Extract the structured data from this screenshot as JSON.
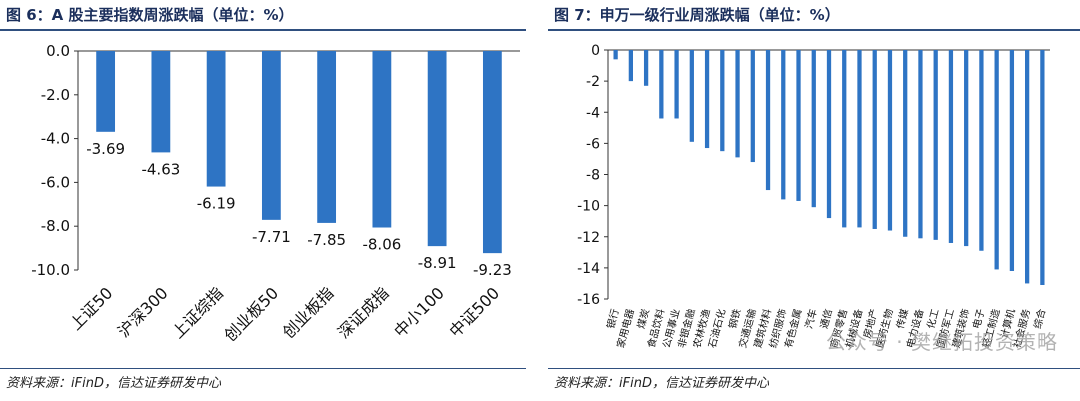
{
  "left": {
    "title": "图 6：A 股主要指数周涨跌幅（单位：%）",
    "source": "资料来源：iFinD，信达证券研发中心",
    "chart_data": {
      "type": "bar",
      "title": "图 6：A 股主要指数周涨跌幅（单位：%）",
      "categories": [
        "上证50",
        "沪深300",
        "上证综指",
        "创业板50",
        "创业板指",
        "深证成指",
        "中小100",
        "中证500"
      ],
      "values": [
        -3.69,
        -4.63,
        -6.19,
        -7.71,
        -7.85,
        -8.06,
        -8.91,
        -9.23
      ],
      "value_labels": [
        "-3.69",
        "-4.63",
        "-6.19",
        "-7.71",
        "-7.85",
        "-8.06",
        "-8.91",
        "-9.23"
      ],
      "yticks": [
        "0.0",
        "-2.0",
        "-4.0",
        "-6.0",
        "-8.0",
        "-10.0"
      ],
      "ylim": [
        -10,
        0
      ],
      "xlabel": "",
      "ylabel": "",
      "grid": false,
      "bar_color": "#2e74c4"
    }
  },
  "right": {
    "title": "图 7：申万一级行业周涨跌幅（单位：%）",
    "source": "资料来源：iFinD，信达证券研发中心",
    "watermark": "公众号 · 樊继拓投资策略",
    "chart_data": {
      "type": "bar",
      "title": "图 7：申万一级行业周涨跌幅（单位：%）",
      "categories": [
        "银行",
        "家用电器",
        "煤炭",
        "食品饮料",
        "公用事业",
        "非银金融",
        "农林牧渔",
        "石油石化",
        "钢铁",
        "交通运输",
        "建筑材料",
        "纺织服饰",
        "有色金属",
        "汽车",
        "通信",
        "商贸零售",
        "机械设备",
        "房地产",
        "医药生物",
        "传媒",
        "电力设备",
        "化工",
        "国防军工",
        "建筑装饰",
        "电子",
        "轻工制造",
        "计算机",
        "社会服务",
        "综合"
      ],
      "values": [
        -0.6,
        -2.0,
        -2.3,
        -4.4,
        -4.4,
        -5.9,
        -6.3,
        -6.5,
        -6.9,
        -7.2,
        -9.0,
        -9.6,
        -9.7,
        -10.1,
        -10.8,
        -11.4,
        -11.4,
        -11.5,
        -11.6,
        -12.0,
        -12.1,
        -12.2,
        -12.4,
        -12.6,
        -12.9,
        -14.1,
        -14.2,
        -15.0,
        -15.1
      ],
      "yticks": [
        "0",
        "-2",
        "-4",
        "-6",
        "-8",
        "-10",
        "-12",
        "-14",
        "-16"
      ],
      "ylim": [
        -16,
        0
      ],
      "xlabel": "",
      "ylabel": "",
      "grid": false,
      "bar_color": "#2e74c4"
    }
  }
}
